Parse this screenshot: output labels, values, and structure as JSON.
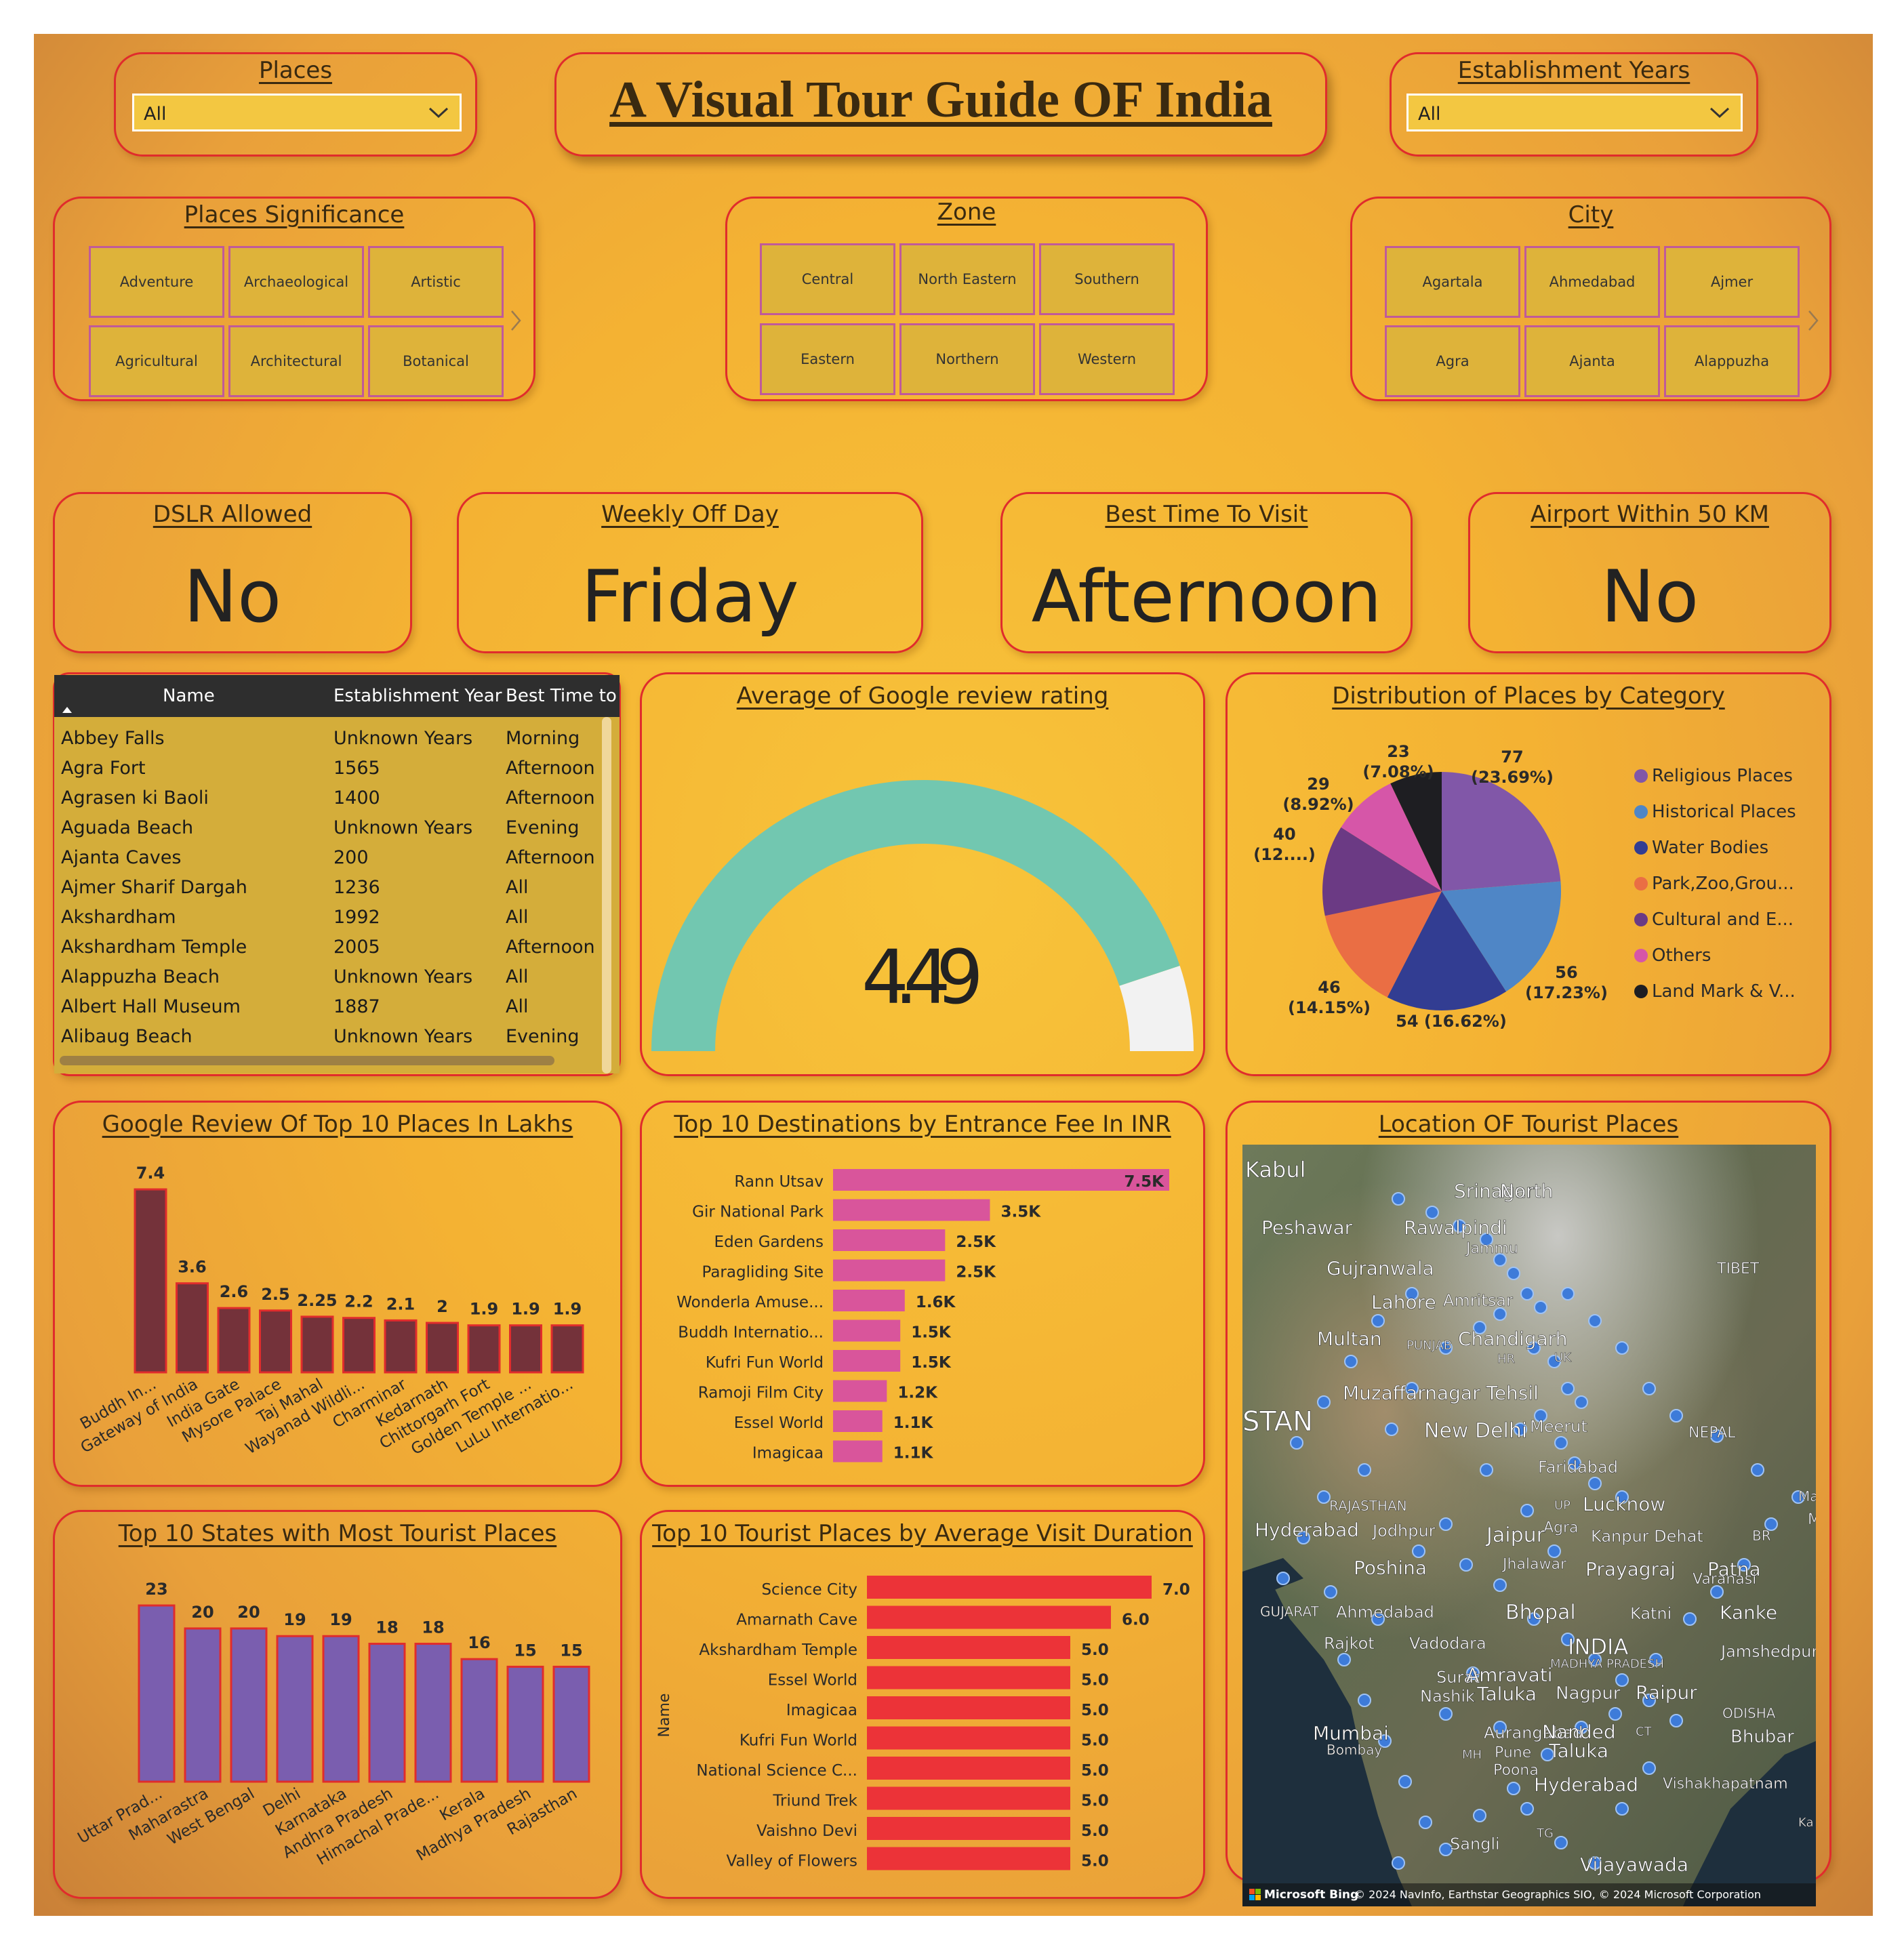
{
  "title": "A Visual Tour Guide OF India",
  "filters": {
    "places": {
      "label": "Places",
      "value": "All"
    },
    "years": {
      "label": "Establishment Years",
      "value": "All"
    }
  },
  "slicers": {
    "significance": {
      "title": "Places Significance",
      "items": [
        "Adventure",
        "Archaeological",
        "Artistic",
        "Agricultural",
        "Architectural",
        "Botanical"
      ]
    },
    "zone": {
      "title": "Zone",
      "items": [
        "Central",
        "North Eastern",
        "Southern",
        "Eastern",
        "Northern",
        "Western"
      ]
    },
    "city": {
      "title": "City",
      "items": [
        "Agartala",
        "Ahmedabad",
        "Ajmer",
        "Agra",
        "Ajanta",
        "Alappuzha"
      ]
    }
  },
  "kpis": {
    "dslr": {
      "label": "DSLR Allowed",
      "value": "No"
    },
    "weekly_off": {
      "label": "Weekly Off Day",
      "value": "Friday"
    },
    "best_time": {
      "label": "Best Time To Visit",
      "value": "Afternoon"
    },
    "airport": {
      "label": "Airport Within 50 KM",
      "value": "No"
    }
  },
  "table": {
    "columns": [
      "Name",
      "Establishment Year",
      "Best Time to"
    ],
    "rows": [
      [
        "Abbey Falls",
        "Unknown Years",
        "Morning"
      ],
      [
        "Agra Fort",
        "1565",
        "Afternoon"
      ],
      [
        "Agrasen ki Baoli",
        "1400",
        "Afternoon"
      ],
      [
        "Aguada Beach",
        "Unknown Years",
        "Evening"
      ],
      [
        "Ajanta Caves",
        "200",
        "Afternoon"
      ],
      [
        "Ajmer Sharif Dargah",
        "1236",
        "All"
      ],
      [
        "Akshardham",
        "1992",
        "All"
      ],
      [
        "Akshardham Temple",
        "2005",
        "Afternoon"
      ],
      [
        "Alappuzha Beach",
        "Unknown Years",
        "All"
      ],
      [
        "Albert Hall Museum",
        "1887",
        "All"
      ],
      [
        "Alibaug Beach",
        "Unknown Years",
        "Evening"
      ]
    ]
  },
  "colors": {
    "gauge_fill": "#72c7b0",
    "gauge_rest": "#f2f2f2",
    "google_bar": "#74323a",
    "fee_bar": "#d9559b",
    "state_bar": "#7a5eaf",
    "duration_bar": "#ec3338"
  },
  "map": {
    "title": "Location OF Tourist Places",
    "credit": "© 2024 NavInfo, Earthstar Geographics SIO, © 2024 Microsoft Corporation",
    "brand": "Microsoft Bing",
    "labels": [
      "Kabul",
      "Srinagar",
      "North",
      "Peshawar",
      "Rawalpindi",
      "Jammu",
      "TIBET",
      "Gujranwala",
      "Lahore",
      "Amritsar",
      "Multan",
      "PUNJAB",
      "Chandigarh",
      "HR",
      "UK",
      "Muzaffarnagar Tehsil",
      "STAN",
      "New Delhi",
      "Meerut",
      "NEPAL",
      "Faridabad",
      "RAJASTHAN",
      "UP",
      "Lucknow",
      "Maharaj",
      "Agra",
      "Hyderabad",
      "Jodhpur",
      "Jaipur",
      "Kanpur Dehat",
      "BR",
      "Poshina",
      "Jhalawar",
      "Prayagraj",
      "Varanasi",
      "Patna",
      "GUJARAT",
      "Ahmedabad",
      "Bhopal",
      "Katni",
      "Kanke",
      "Rajkot",
      "Vadodara",
      "INDIA",
      "MADHYA PRADESH",
      "Jamshedpur",
      "Surat",
      "Amravati",
      "Nashik",
      "Taluka",
      "Nagpur",
      "Raipur",
      "ODISHA",
      "Mumbai",
      "Aurangabad",
      "Nanded",
      "Bombay",
      "Pune",
      "Taluka",
      "Bhubar",
      "Poona",
      "MH",
      "CT",
      "Hyderabad",
      "Vishakhapatnam",
      "TG",
      "Sangli",
      "Vijayawada",
      "Ka",
      "Ma"
    ]
  },
  "chart_data": [
    {
      "type": "gauge",
      "title": "Average of Google review rating",
      "value": 4.49,
      "value_label": "4.49",
      "min": 0,
      "max": 5
    },
    {
      "type": "pie",
      "title": "Distribution of Places by Category",
      "categories": [
        "Religious Places",
        "Historical Places",
        "Water Bodies",
        "Park,Zoo,Grou...",
        "Cultural and E...",
        "Others",
        "Land Mark & V..."
      ],
      "values": [
        77,
        56,
        54,
        46,
        40,
        29,
        23
      ],
      "data_labels": [
        "77\n(23.69%)",
        "56\n(17.23%)",
        "54 (16.62%)",
        "46\n(14.15%)",
        "40\n(12....)",
        "29\n(8.92%)",
        "23\n(7.08%)"
      ],
      "colors": [
        "#8157a8",
        "#4f86c6",
        "#323d92",
        "#ea6e44",
        "#6b3a84",
        "#d656a8",
        "#1e1e22"
      ],
      "legend": "right"
    },
    {
      "type": "bar",
      "title": "Google Review Of Top 10 Places In Lakhs",
      "categories": [
        "Buddh In...",
        "Gateway of India",
        "India Gate",
        "Mysore Palace",
        "Taj Mahal",
        "Wayanad Wildli...",
        "Charminar",
        "Kedarnath",
        "Chittorgarh Fort",
        "Golden Temple ...",
        "LuLu Internatio..."
      ],
      "values": [
        7.4,
        3.6,
        2.6,
        2.5,
        2.25,
        2.2,
        2.1,
        2,
        1.9,
        1.9,
        1.9
      ],
      "labels": [
        "7.4",
        "3.6",
        "2.6",
        "2.5",
        "2.25",
        "2.2",
        "2.1",
        "2",
        "1.9",
        "1.9",
        "1.9"
      ]
    },
    {
      "type": "bar",
      "orientation": "horizontal",
      "title": "Top 10 Destinations by Entrance Fee In INR",
      "categories": [
        "Rann Utsav",
        "Gir National Park",
        "Eden Gardens",
        "Paragliding Site",
        "Wonderla Amuse...",
        "Buddh Internatio...",
        "Kufri Fun World",
        "Ramoji Film City",
        "Essel World",
        "Imagicaa"
      ],
      "values": [
        7500,
        3500,
        2500,
        2500,
        1600,
        1500,
        1500,
        1200,
        1100,
        1100
      ],
      "labels": [
        "7.5K",
        "3.5K",
        "2.5K",
        "2.5K",
        "1.6K",
        "1.5K",
        "1.5K",
        "1.2K",
        "1.1K",
        "1.1K"
      ]
    },
    {
      "type": "bar",
      "title": "Top 10 States with Most Tourist Places",
      "categories": [
        "Uttar Prad...",
        "Maharastra",
        "West Bengal",
        "Delhi",
        "Karnataka",
        "Andhra Pradesh",
        "Himachal Prade...",
        "Kerala",
        "Madhya Pradesh",
        "Rajasthan"
      ],
      "values": [
        23,
        20,
        20,
        19,
        19,
        18,
        18,
        16,
        15,
        15
      ],
      "labels": [
        "23",
        "20",
        "20",
        "19",
        "19",
        "18",
        "18",
        "16",
        "15",
        "15"
      ]
    },
    {
      "type": "bar",
      "orientation": "horizontal",
      "title": "Top 10 Tourist Places by Average Visit Duration",
      "ylabel": "Name",
      "categories": [
        "Science City",
        "Amarnath Cave",
        "Akshardham Temple",
        "Essel World",
        "Imagicaa",
        "Kufri Fun World",
        "National Science C...",
        "Triund Trek",
        "Vaishno Devi",
        "Valley of Flowers"
      ],
      "values": [
        7.0,
        6.0,
        5.0,
        5.0,
        5.0,
        5.0,
        5.0,
        5.0,
        5.0,
        5.0
      ],
      "labels": [
        "7.0",
        "6.0",
        "5.0",
        "5.0",
        "5.0",
        "5.0",
        "5.0",
        "5.0",
        "5.0",
        "5.0"
      ]
    }
  ]
}
